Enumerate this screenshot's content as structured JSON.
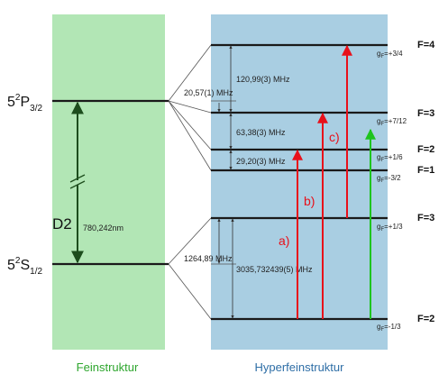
{
  "fine": {
    "label": "Feinstruktur",
    "upper": {
      "base": "5",
      "sup": "2",
      "letter": "P",
      "sub": "3/2"
    },
    "lower": {
      "base": "5",
      "sup": "2",
      "letter": "S",
      "sub": "1/2"
    },
    "transition": "D2",
    "wavelength": "780,242nm"
  },
  "hyperfine": {
    "label": "Hyperfeinstruktur",
    "levels": [
      {
        "F": "F=4",
        "g": "g",
        "gsub": "F",
        "gval": "=+3/4"
      },
      {
        "F": "F=3",
        "g": "g",
        "gsub": "F",
        "gval": "=+7/12"
      },
      {
        "F": "F=2",
        "g": "g",
        "gsub": "F",
        "gval": "=+1/6"
      },
      {
        "F": "F=1",
        "g": "g",
        "gsub": "F",
        "gval": "=-3/2"
      },
      {
        "F": "F=3",
        "g": "g",
        "gsub": "F",
        "gval": "=+1/3"
      },
      {
        "F": "F=2",
        "g": "g",
        "gsub": "F",
        "gval": "=-1/3"
      }
    ],
    "spacings": {
      "p_4_3": "120,99(3) MHz",
      "p_shift": "20,57(1) MHz",
      "p_3_2": "63,38(3) MHz",
      "p_2_1": "29,20(3) MHz",
      "s_shift": "1264,89 MHz",
      "s_3_2": "3035,732439(5) MHz"
    },
    "transitions": [
      {
        "label": "a)",
        "color": "#e8101a"
      },
      {
        "label": "b)",
        "color": "#e8101a"
      },
      {
        "label": "c)",
        "color": "#e8101a"
      },
      {
        "label": "",
        "color": "#1ec41e"
      }
    ]
  },
  "colors": {
    "fine_bg": "#b2e6b5",
    "hyperfine_bg": "#a9cee2",
    "fine_label": "#2ea62e",
    "hyperfine_label": "#2e6ea6",
    "d2_arrow": "#1d4d1d",
    "level": "#1a1a1a"
  }
}
